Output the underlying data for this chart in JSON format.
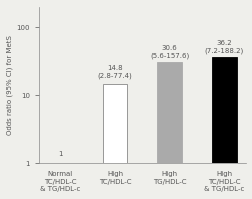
{
  "categories": [
    "Normal\nTC/HDL-C\n& TG/HDL-c",
    "High\nTC/HDL-C",
    "High\nTG/HDL-C",
    "High\nTC/HDL-C\n& TG/HDL-c"
  ],
  "values": [
    1,
    14.8,
    30.6,
    36.2
  ],
  "bar_colors": [
    "white",
    "white",
    "#aaaaaa",
    "black"
  ],
  "bar_edgecolors": [
    "#888888",
    "#888888",
    "#aaaaaa",
    "black"
  ],
  "annotations": [
    "1",
    "14.8\n(2.8-77.4)",
    "30.6\n(5.6-157.6)",
    "36.2\n(7.2-188.2)"
  ],
  "ylabel": "Odds ratio (95% CI) for MetS",
  "ylim_log": [
    1,
    200
  ],
  "yticks": [
    1,
    10,
    100
  ],
  "annotation_fontsize": 5.0,
  "label_fontsize": 5.0,
  "tick_fontsize": 5.0,
  "xlabel_fontsize": 5.0,
  "background_color": "#efefeb"
}
